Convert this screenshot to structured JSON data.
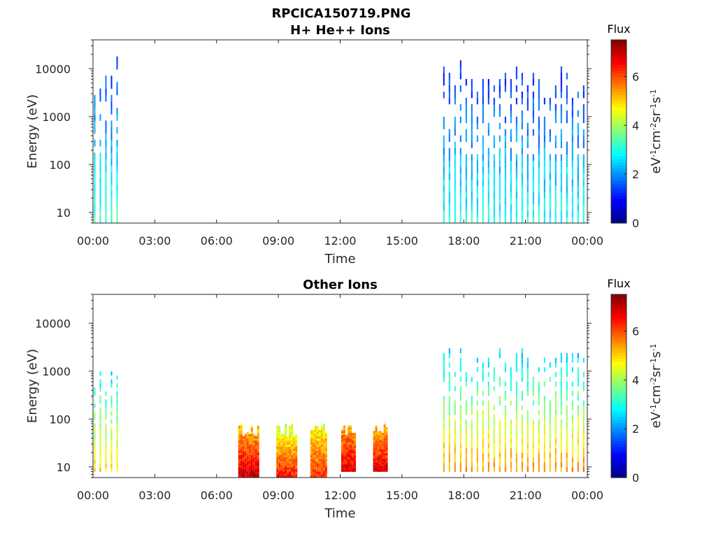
{
  "page_title": "RPCICA150719.PNG",
  "chart_data": [
    {
      "type": "heatmap",
      "title": "H+ He++ Ions",
      "xlabel": "Time",
      "ylabel": "Energy (eV)",
      "x_ticks": [
        "00:00",
        "03:00",
        "06:00",
        "09:00",
        "12:00",
        "15:00",
        "18:00",
        "21:00",
        "00:00"
      ],
      "xlim_hours": [
        0,
        24
      ],
      "y_scale": "log",
      "ylim": [
        6,
        40000
      ],
      "y_ticks": [
        {
          "value": 10,
          "label": "10"
        },
        {
          "value": 100,
          "label": "100"
        },
        {
          "value": 1000,
          "label": "1000"
        },
        {
          "value": 10000,
          "label": "10000"
        }
      ],
      "colorbar": {
        "title": "Flux",
        "label": "eV-1cm-2sr-1s-1",
        "range": [
          0,
          7.5
        ],
        "ticks": [
          "0",
          "2",
          "4",
          "6"
        ]
      },
      "colormap": [
        "#00008f",
        "#0000ff",
        "#0080ff",
        "#00ffff",
        "#80ff80",
        "#ffff00",
        "#ff8000",
        "#ff0000",
        "#800000"
      ],
      "blocks": [
        {
          "start": 0.05,
          "end": 1.35,
          "emin": 6,
          "emax": 18000,
          "flux_low": 3.2,
          "flux_high": 1.2,
          "striped": true
        },
        {
          "start": 17.0,
          "end": 24.0,
          "emin": 6,
          "emax": 15000,
          "flux_low": 3.0,
          "flux_high": 1.0,
          "striped": true
        }
      ]
    },
    {
      "type": "heatmap",
      "title": "Other Ions",
      "xlabel": "Time",
      "ylabel": "Energy (eV)",
      "x_ticks": [
        "00:00",
        "03:00",
        "06:00",
        "09:00",
        "12:00",
        "15:00",
        "18:00",
        "21:00",
        "00:00"
      ],
      "xlim_hours": [
        0,
        24
      ],
      "y_scale": "log",
      "ylim": [
        6,
        40000
      ],
      "y_ticks": [
        {
          "value": 10,
          "label": "10"
        },
        {
          "value": 100,
          "label": "100"
        },
        {
          "value": 1000,
          "label": "1000"
        },
        {
          "value": 10000,
          "label": "10000"
        }
      ],
      "colorbar": {
        "title": "Flux",
        "label": "eV-1cm-2sr-1s-1",
        "range": [
          0,
          7.5
        ],
        "ticks": [
          "0",
          "2",
          "4",
          "6"
        ]
      },
      "colormap": [
        "#00008f",
        "#0000ff",
        "#0080ff",
        "#00ffff",
        "#80ff80",
        "#ffff00",
        "#ff8000",
        "#ff0000",
        "#800000"
      ],
      "blocks": [
        {
          "start": 0.05,
          "end": 1.35,
          "emin": 8,
          "emax": 1200,
          "flux_low": 5.0,
          "flux_high": 2.5,
          "striped": true
        },
        {
          "start": 7.05,
          "end": 8.05,
          "emin": 6,
          "emax": 80,
          "flux_low": 7.0,
          "flux_high": 5.0,
          "striped": false
        },
        {
          "start": 8.9,
          "end": 9.85,
          "emin": 6,
          "emax": 80,
          "flux_low": 6.5,
          "flux_high": 4.0,
          "striped": false
        },
        {
          "start": 10.55,
          "end": 11.3,
          "emin": 6,
          "emax": 80,
          "flux_low": 6.3,
          "flux_high": 4.5,
          "striped": false
        },
        {
          "start": 12.05,
          "end": 12.75,
          "emin": 8,
          "emax": 80,
          "flux_low": 6.8,
          "flux_high": 5.2,
          "striped": false
        },
        {
          "start": 13.6,
          "end": 14.25,
          "emin": 8,
          "emax": 80,
          "flux_low": 6.9,
          "flux_high": 5.0,
          "striped": false
        },
        {
          "start": 17.0,
          "end": 24.0,
          "emin": 8,
          "emax": 3000,
          "flux_low": 5.5,
          "flux_high": 2.2,
          "striped": true
        }
      ]
    }
  ]
}
